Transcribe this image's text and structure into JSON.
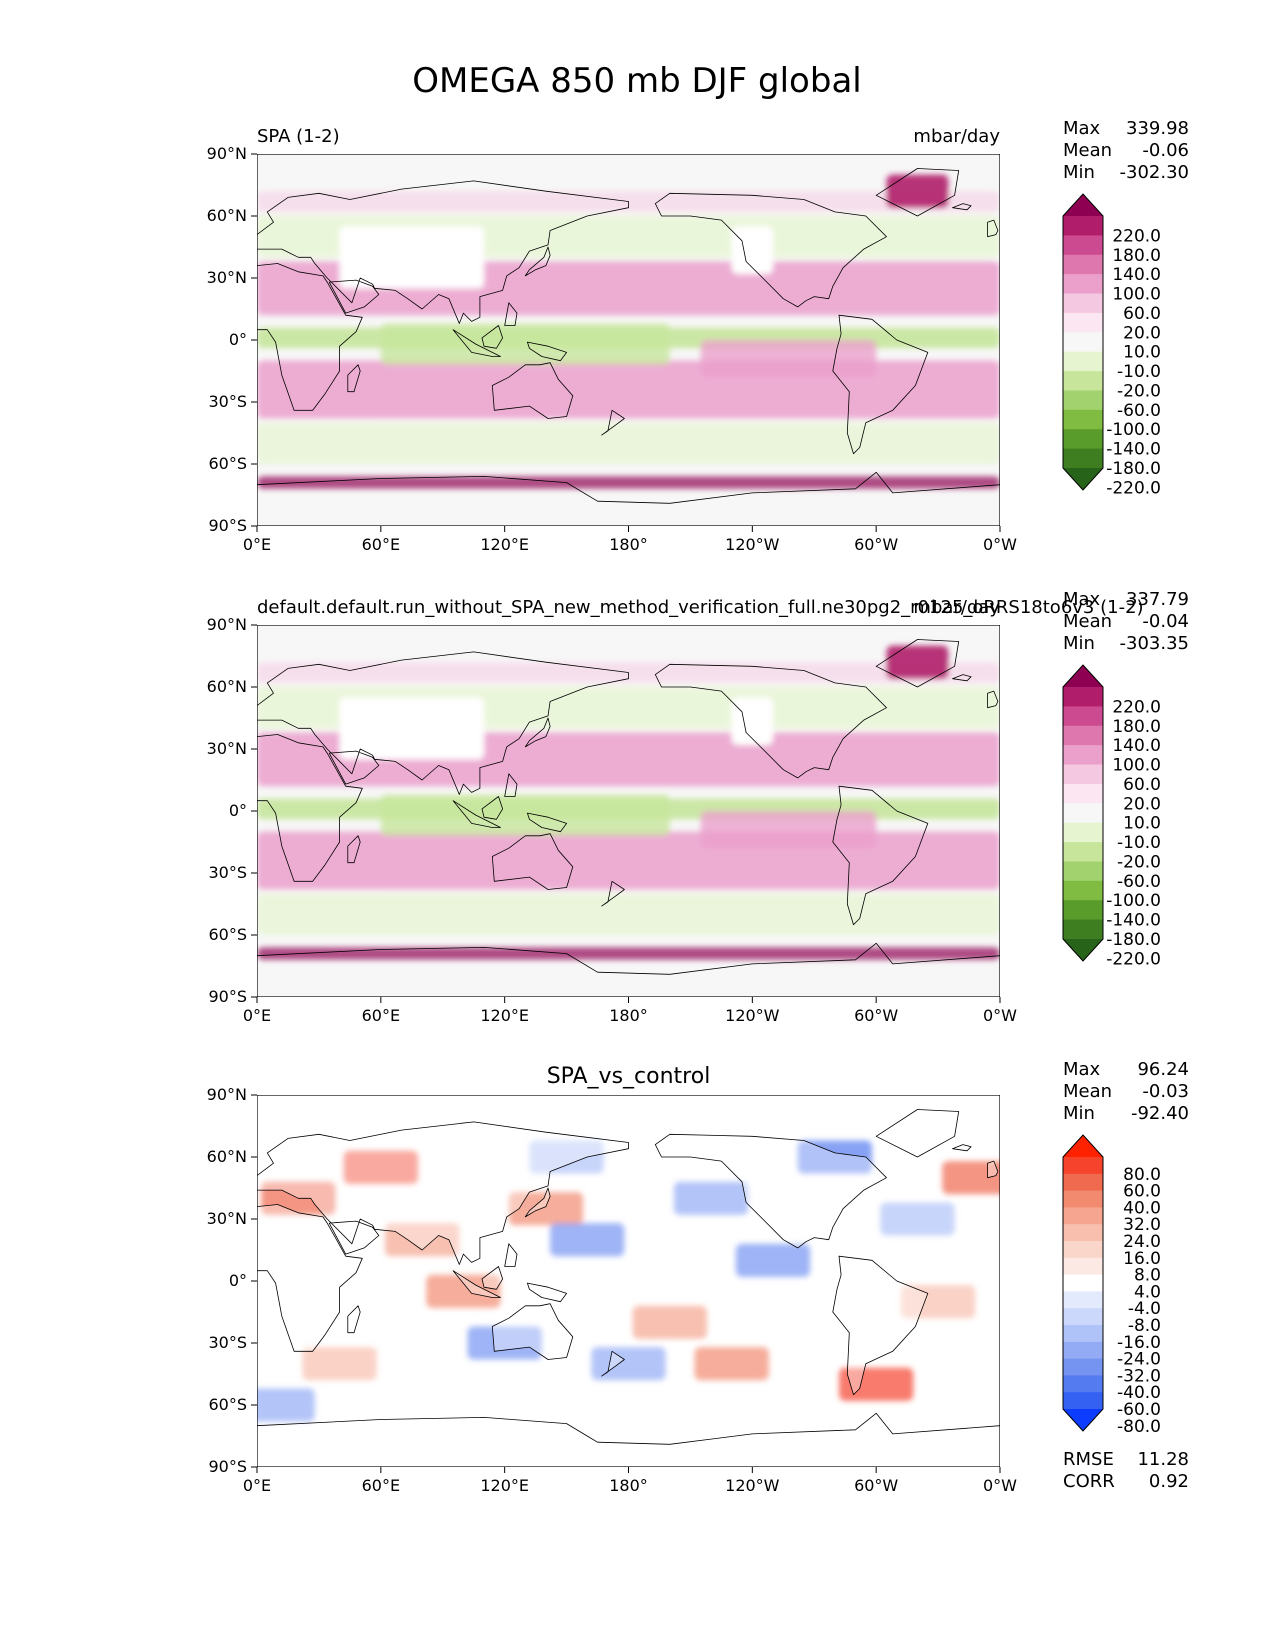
{
  "figure_title": "OMEGA 850 mb DJF global",
  "chart_data": [
    {
      "type": "heatmap",
      "title": "",
      "left_label": "SPA (1-2)",
      "right_label": "mbar/day",
      "x_ticks": [
        "0°E",
        "60°E",
        "120°E",
        "180°",
        "120°W",
        "60°W",
        "0°W"
      ],
      "y_ticks": [
        "90°N",
        "60°N",
        "30°N",
        "0°",
        "30°S",
        "60°S",
        "90°S"
      ],
      "xlim": [
        0,
        360
      ],
      "ylim": [
        -90,
        90
      ],
      "stats": [
        {
          "label": "Max",
          "value": "339.98"
        },
        {
          "label": "Mean",
          "value": "-0.06"
        },
        {
          "label": "Min",
          "value": "-302.30"
        }
      ],
      "colorbar": {
        "labels": [
          "220.0",
          "180.0",
          "140.0",
          "100.0",
          "60.0",
          "20.0",
          "10.0",
          "-10.0",
          "-20.0",
          "-60.0",
          "-100.0",
          "-140.0",
          "-180.0",
          "-220.0"
        ],
        "colors": [
          "#8e0152",
          "#b01d6a",
          "#cc4a8f",
          "#de77ae",
          "#eba0cc",
          "#f5c8e2",
          "#fbe6f1",
          "#f7f7f7",
          "#e6f5d0",
          "#c7e69c",
          "#a2d26d",
          "#7fbc41",
          "#5a9c2c",
          "#3e7d20",
          "#276419"
        ]
      }
    },
    {
      "type": "heatmap",
      "title": "",
      "left_label": "default.default.run_without_SPA_new_method_verification_full.ne30pg2_r0125_oRRS18to6v3 (1-2)",
      "right_label": "mbar/day",
      "x_ticks": [
        "0°E",
        "60°E",
        "120°E",
        "180°",
        "120°W",
        "60°W",
        "0°W"
      ],
      "y_ticks": [
        "90°N",
        "60°N",
        "30°N",
        "0°",
        "30°S",
        "60°S",
        "90°S"
      ],
      "xlim": [
        0,
        360
      ],
      "ylim": [
        -90,
        90
      ],
      "stats": [
        {
          "label": "Max",
          "value": "337.79"
        },
        {
          "label": "Mean",
          "value": "-0.04"
        },
        {
          "label": "Min",
          "value": "-303.35"
        }
      ],
      "colorbar": {
        "labels": [
          "220.0",
          "180.0",
          "140.0",
          "100.0",
          "60.0",
          "20.0",
          "10.0",
          "-10.0",
          "-20.0",
          "-60.0",
          "-100.0",
          "-140.0",
          "-180.0",
          "-220.0"
        ],
        "colors": [
          "#8e0152",
          "#b01d6a",
          "#cc4a8f",
          "#de77ae",
          "#eba0cc",
          "#f5c8e2",
          "#fbe6f1",
          "#f7f7f7",
          "#e6f5d0",
          "#c7e69c",
          "#a2d26d",
          "#7fbc41",
          "#5a9c2c",
          "#3e7d20",
          "#276419"
        ]
      }
    },
    {
      "type": "heatmap",
      "title": "SPA_vs_control",
      "left_label": "",
      "right_label": "",
      "x_ticks": [
        "0°E",
        "60°E",
        "120°E",
        "180°",
        "120°W",
        "60°W",
        "0°W"
      ],
      "y_ticks": [
        "90°N",
        "60°N",
        "30°N",
        "0°",
        "30°S",
        "60°S",
        "90°S"
      ],
      "xlim": [
        0,
        360
      ],
      "ylim": [
        -90,
        90
      ],
      "stats": [
        {
          "label": "Max",
          "value": "96.24"
        },
        {
          "label": "Mean",
          "value": "-0.03"
        },
        {
          "label": "Min",
          "value": "-92.40"
        }
      ],
      "extra_stats": [
        {
          "label": "RMSE",
          "value": "11.28"
        },
        {
          "label": "CORR",
          "value": "0.92"
        }
      ],
      "colorbar": {
        "labels": [
          "80.0",
          "60.0",
          "40.0",
          "32.0",
          "24.0",
          "16.0",
          "8.0",
          "4.0",
          "-4.0",
          "-8.0",
          "-16.0",
          "-24.0",
          "-32.0",
          "-40.0",
          "-60.0",
          "-80.0"
        ],
        "colors": [
          "#ff2200",
          "#f5432c",
          "#f06a4f",
          "#f28a6f",
          "#f5a590",
          "#f8bfae",
          "#fad6ca",
          "#fde9e3",
          "#ffffff",
          "#e3eafd",
          "#ccd8fb",
          "#b0c3f8",
          "#93abf5",
          "#7594f2",
          "#557bf0",
          "#3561f3",
          "#0b3cff"
        ]
      }
    }
  ]
}
